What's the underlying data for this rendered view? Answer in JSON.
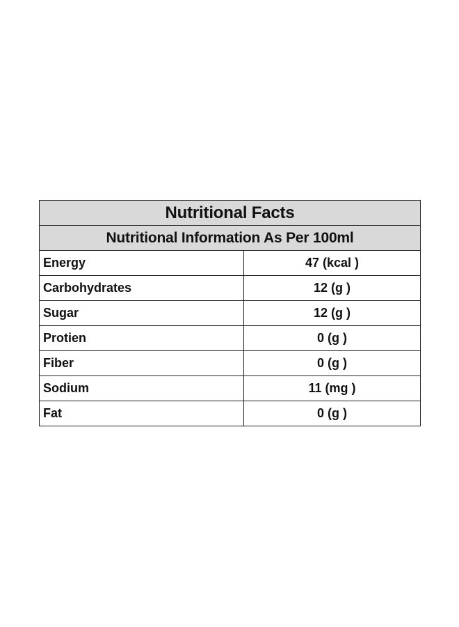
{
  "table": {
    "title": "Nutritional Facts",
    "subtitle": "Nutritional Information As Per 100ml",
    "rows": [
      {
        "nutrient": "Energy",
        "amount": "47 (kcal )"
      },
      {
        "nutrient": "Carbohydrates",
        "amount": "12 (g )"
      },
      {
        "nutrient": "Sugar",
        "amount": "12 (g )"
      },
      {
        "nutrient": "Protien",
        "amount": "0 (g )"
      },
      {
        "nutrient": "Fiber",
        "amount": "0 (g )"
      },
      {
        "nutrient": "Sodium",
        "amount": "11 (mg )"
      },
      {
        "nutrient": "Fat",
        "amount": "0 (g )"
      }
    ],
    "header_background": "#d9d9d9",
    "border_color": "#222222"
  }
}
